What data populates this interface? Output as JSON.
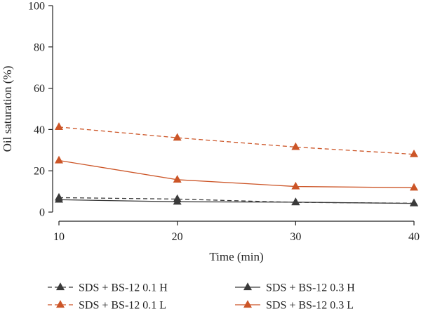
{
  "chart_data": {
    "type": "line",
    "title": "",
    "xlabel": "Time (min)",
    "ylabel": "Oil saturation (%)",
    "x": [
      10,
      20,
      30,
      40
    ],
    "xlim": [
      10,
      40
    ],
    "ylim": [
      0,
      100
    ],
    "xticks": [
      "10",
      "20",
      "30",
      "40"
    ],
    "yticks": [
      "0",
      "20",
      "40",
      "60",
      "80",
      "100"
    ],
    "grid": false,
    "legend_position": "bottom",
    "series": [
      {
        "name": "SDS + BS-12 0.1 H",
        "color": "#3a3a3a",
        "line_style": "dashed",
        "marker": "triangle",
        "values": [
          7.0,
          6.3,
          4.7,
          4.3
        ]
      },
      {
        "name": "SDS + BS-12 0.3 H",
        "color": "#3a3a3a",
        "line_style": "solid",
        "marker": "triangle",
        "values": [
          6.0,
          5.0,
          4.8,
          4.2
        ]
      },
      {
        "name": "SDS + BS-12 0.1 L",
        "color": "#cc5527",
        "line_style": "dashed",
        "marker": "triangle",
        "values": [
          41.2,
          36.0,
          31.5,
          28.0
        ]
      },
      {
        "name": "SDS + BS-12 0.3 L",
        "color": "#cc5527",
        "line_style": "solid",
        "marker": "triangle",
        "values": [
          25.0,
          15.7,
          12.4,
          11.8
        ]
      }
    ]
  }
}
